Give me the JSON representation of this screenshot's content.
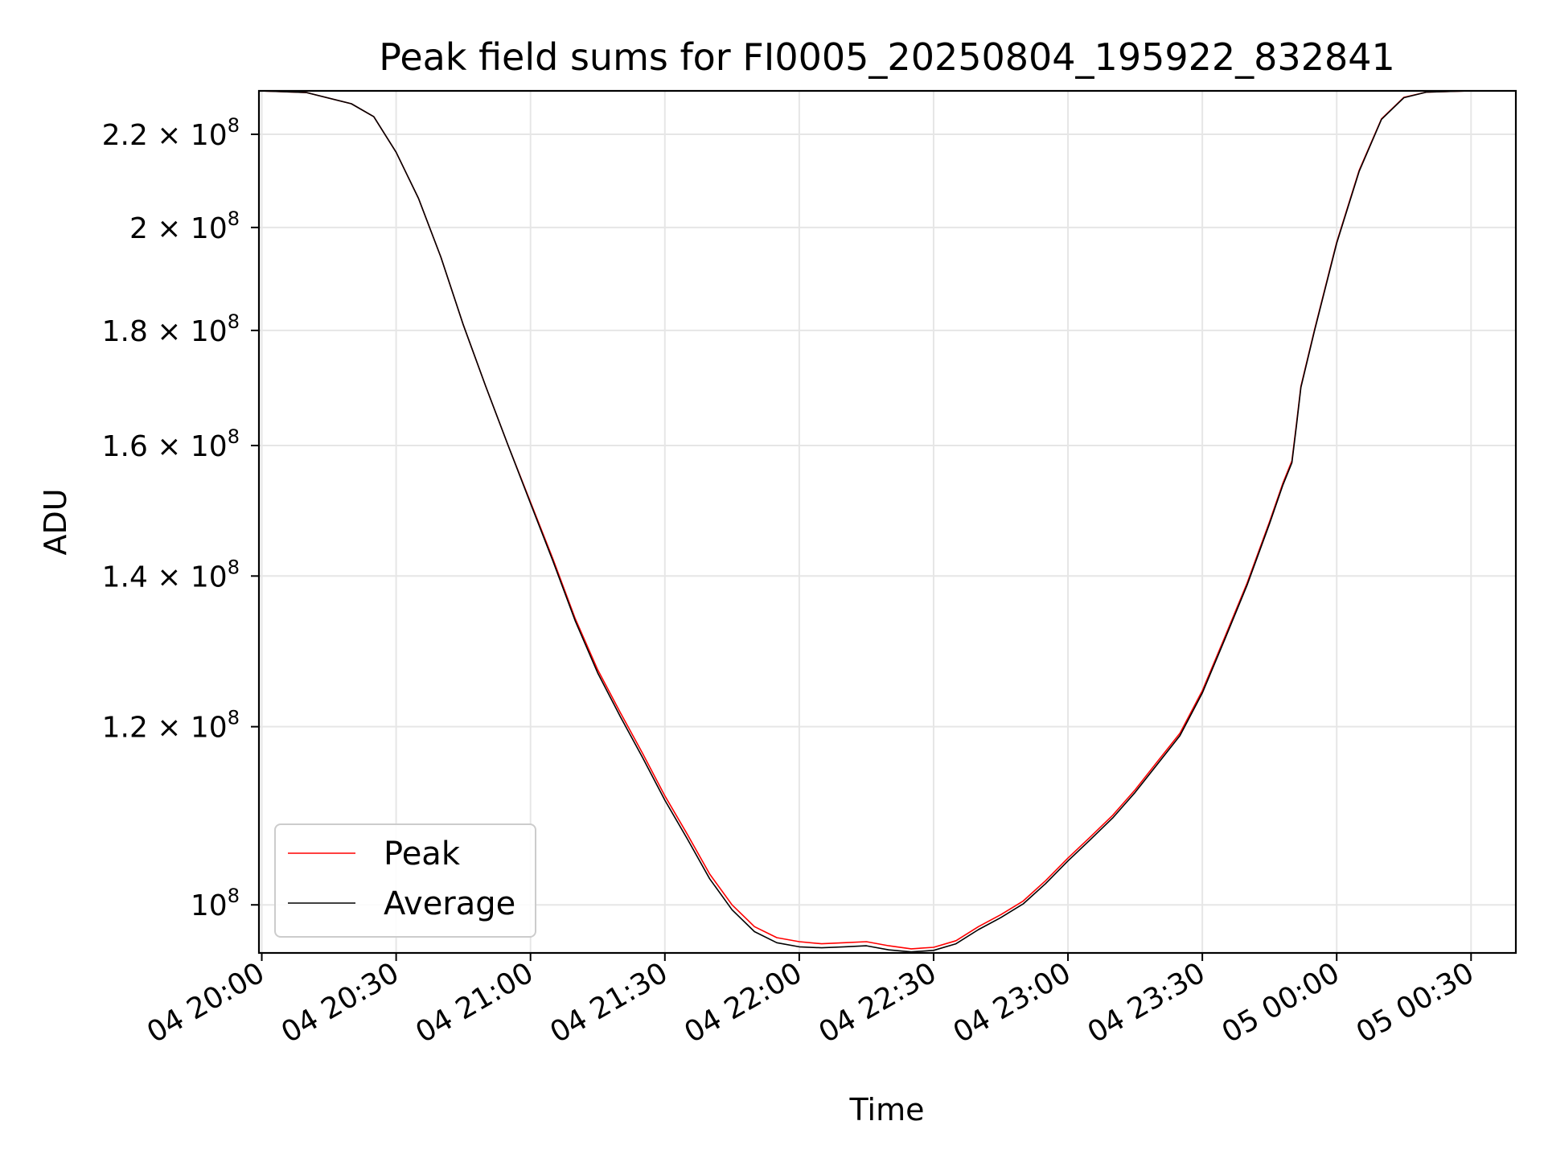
{
  "chart_data": {
    "type": "line",
    "title": "Peak field sums for FI0005_20250804_195922_832841",
    "xlabel": "Time",
    "ylabel": "ADU",
    "yscale": "log",
    "ylim": [
      95200000,
      230000000
    ],
    "xlim": [
      "2025-08-04 19:59:22",
      "2025-08-05 00:40:00"
    ],
    "grid": true,
    "legend_position": "lower-left",
    "x_ticks": [
      "04 20:00",
      "04 20:30",
      "04 21:00",
      "04 21:30",
      "04 22:00",
      "04 22:30",
      "04 23:00",
      "04 23:30",
      "05 00:00",
      "05 00:30"
    ],
    "y_ticks": [
      {
        "value": 100000000,
        "mantissa": "",
        "exponent": "8"
      },
      {
        "value": 120000000,
        "mantissa": "1.2",
        "exponent": "8"
      },
      {
        "value": 140000000,
        "mantissa": "1.4",
        "exponent": "8"
      },
      {
        "value": 160000000,
        "mantissa": "1.6",
        "exponent": "8"
      },
      {
        "value": 180000000,
        "mantissa": "1.8",
        "exponent": "8"
      },
      {
        "value": 200000000,
        "mantissa": "2",
        "exponent": "8"
      },
      {
        "value": 220000000,
        "mantissa": "2.2",
        "exponent": "8"
      }
    ],
    "series": [
      {
        "name": "Peak",
        "color": "#ff0000",
        "points": [
          [
            "2025-08-04 19:59:22",
            230000000
          ],
          [
            "2025-08-04 20:10",
            229600000
          ],
          [
            "2025-08-04 20:20",
            227000000
          ],
          [
            "2025-08-04 20:25",
            224000000
          ],
          [
            "2025-08-04 20:30",
            216000000
          ],
          [
            "2025-08-04 20:35",
            206000000
          ],
          [
            "2025-08-04 20:40",
            194000000
          ],
          [
            "2025-08-04 20:45",
            181000000
          ],
          [
            "2025-08-04 20:50",
            170000000
          ],
          [
            "2025-08-04 20:55",
            160000000
          ],
          [
            "2025-08-04 21:00",
            151000000
          ],
          [
            "2025-08-04 21:05",
            142500000
          ],
          [
            "2025-08-04 21:10",
            134000000
          ],
          [
            "2025-08-04 21:15",
            127200000
          ],
          [
            "2025-08-04 21:20",
            121800000
          ],
          [
            "2025-08-04 21:25",
            116800000
          ],
          [
            "2025-08-04 21:30",
            111800000
          ],
          [
            "2025-08-04 21:35",
            107500000
          ],
          [
            "2025-08-04 21:40",
            103200000
          ],
          [
            "2025-08-04 21:45",
            100000000
          ],
          [
            "2025-08-04 21:50",
            97800000
          ],
          [
            "2025-08-04 21:55",
            96700000
          ],
          [
            "2025-08-04 22:00",
            96300000
          ],
          [
            "2025-08-04 22:05",
            96100000
          ],
          [
            "2025-08-04 22:10",
            96200000
          ],
          [
            "2025-08-04 22:15",
            96300000
          ],
          [
            "2025-08-04 22:20",
            95900000
          ],
          [
            "2025-08-04 22:25",
            95600000
          ],
          [
            "2025-08-04 22:30",
            95750000
          ],
          [
            "2025-08-04 22:35",
            96400000
          ],
          [
            "2025-08-04 22:40",
            97800000
          ],
          [
            "2025-08-04 22:45",
            99000000
          ],
          [
            "2025-08-04 22:50",
            100400000
          ],
          [
            "2025-08-04 22:55",
            102500000
          ],
          [
            "2025-08-04 23:00",
            104900000
          ],
          [
            "2025-08-04 23:05",
            107200000
          ],
          [
            "2025-08-04 23:10",
            109600000
          ],
          [
            "2025-08-04 23:15",
            112500000
          ],
          [
            "2025-08-04 23:20",
            115800000
          ],
          [
            "2025-08-04 23:25",
            119200000
          ],
          [
            "2025-08-04 23:30",
            124500000
          ],
          [
            "2025-08-04 23:35",
            131500000
          ],
          [
            "2025-08-04 23:40",
            139000000
          ],
          [
            "2025-08-04 23:45",
            148000000
          ],
          [
            "2025-08-04 23:48",
            154000000
          ],
          [
            "2025-08-04 23:50",
            157500000
          ],
          [
            "2025-08-04 23:51",
            163500000
          ],
          [
            "2025-08-04 23:52",
            170000000
          ],
          [
            "2025-08-04 23:55",
            180000000
          ],
          [
            "2025-08-05 00:00",
            197000000
          ],
          [
            "2025-08-05 00:05",
            212000000
          ],
          [
            "2025-08-05 00:10",
            223500000
          ],
          [
            "2025-08-05 00:15",
            228500000
          ],
          [
            "2025-08-05 00:20",
            229700000
          ],
          [
            "2025-08-05 00:30",
            230000000
          ]
        ]
      },
      {
        "name": "Average",
        "color": "#000000",
        "points": [
          [
            "2025-08-04 19:59:22",
            230000000
          ],
          [
            "2025-08-04 20:10",
            229600000
          ],
          [
            "2025-08-04 20:20",
            227000000
          ],
          [
            "2025-08-04 20:25",
            224000000
          ],
          [
            "2025-08-04 20:30",
            216000000
          ],
          [
            "2025-08-04 20:35",
            206000000
          ],
          [
            "2025-08-04 20:40",
            194000000
          ],
          [
            "2025-08-04 20:45",
            181000000
          ],
          [
            "2025-08-04 20:50",
            170000000
          ],
          [
            "2025-08-04 20:55",
            160000000
          ],
          [
            "2025-08-04 21:00",
            150800000
          ],
          [
            "2025-08-04 21:05",
            142200000
          ],
          [
            "2025-08-04 21:10",
            133700000
          ],
          [
            "2025-08-04 21:15",
            126800000
          ],
          [
            "2025-08-04 21:20",
            121300000
          ],
          [
            "2025-08-04 21:25",
            116300000
          ],
          [
            "2025-08-04 21:30",
            111300000
          ],
          [
            "2025-08-04 21:35",
            107000000
          ],
          [
            "2025-08-04 21:40",
            102700000
          ],
          [
            "2025-08-04 21:45",
            99500000
          ],
          [
            "2025-08-04 21:50",
            97300000
          ],
          [
            "2025-08-04 21:55",
            96200000
          ],
          [
            "2025-08-04 22:00",
            95800000
          ],
          [
            "2025-08-04 22:05",
            95700000
          ],
          [
            "2025-08-04 22:10",
            95800000
          ],
          [
            "2025-08-04 22:15",
            95900000
          ],
          [
            "2025-08-04 22:20",
            95500000
          ],
          [
            "2025-08-04 22:25",
            95300000
          ],
          [
            "2025-08-04 22:30",
            95450000
          ],
          [
            "2025-08-04 22:35",
            96100000
          ],
          [
            "2025-08-04 22:40",
            97500000
          ],
          [
            "2025-08-04 22:45",
            98700000
          ],
          [
            "2025-08-04 22:50",
            100100000
          ],
          [
            "2025-08-04 22:55",
            102200000
          ],
          [
            "2025-08-04 23:00",
            104600000
          ],
          [
            "2025-08-04 23:05",
            106900000
          ],
          [
            "2025-08-04 23:10",
            109300000
          ],
          [
            "2025-08-04 23:15",
            112200000
          ],
          [
            "2025-08-04 23:20",
            115500000
          ],
          [
            "2025-08-04 23:25",
            118900000
          ],
          [
            "2025-08-04 23:30",
            124200000
          ],
          [
            "2025-08-04 23:35",
            131200000
          ],
          [
            "2025-08-04 23:40",
            138700000
          ],
          [
            "2025-08-04 23:45",
            147700000
          ],
          [
            "2025-08-04 23:48",
            153700000
          ],
          [
            "2025-08-04 23:50",
            157200000
          ],
          [
            "2025-08-04 23:51",
            163200000
          ],
          [
            "2025-08-04 23:52",
            169800000
          ],
          [
            "2025-08-04 23:55",
            179800000
          ],
          [
            "2025-08-05 00:00",
            196800000
          ],
          [
            "2025-08-05 00:05",
            211800000
          ],
          [
            "2025-08-05 00:10",
            223400000
          ],
          [
            "2025-08-05 00:15",
            228400000
          ],
          [
            "2025-08-05 00:20",
            229700000
          ],
          [
            "2025-08-05 00:30",
            230000000
          ]
        ]
      }
    ]
  }
}
